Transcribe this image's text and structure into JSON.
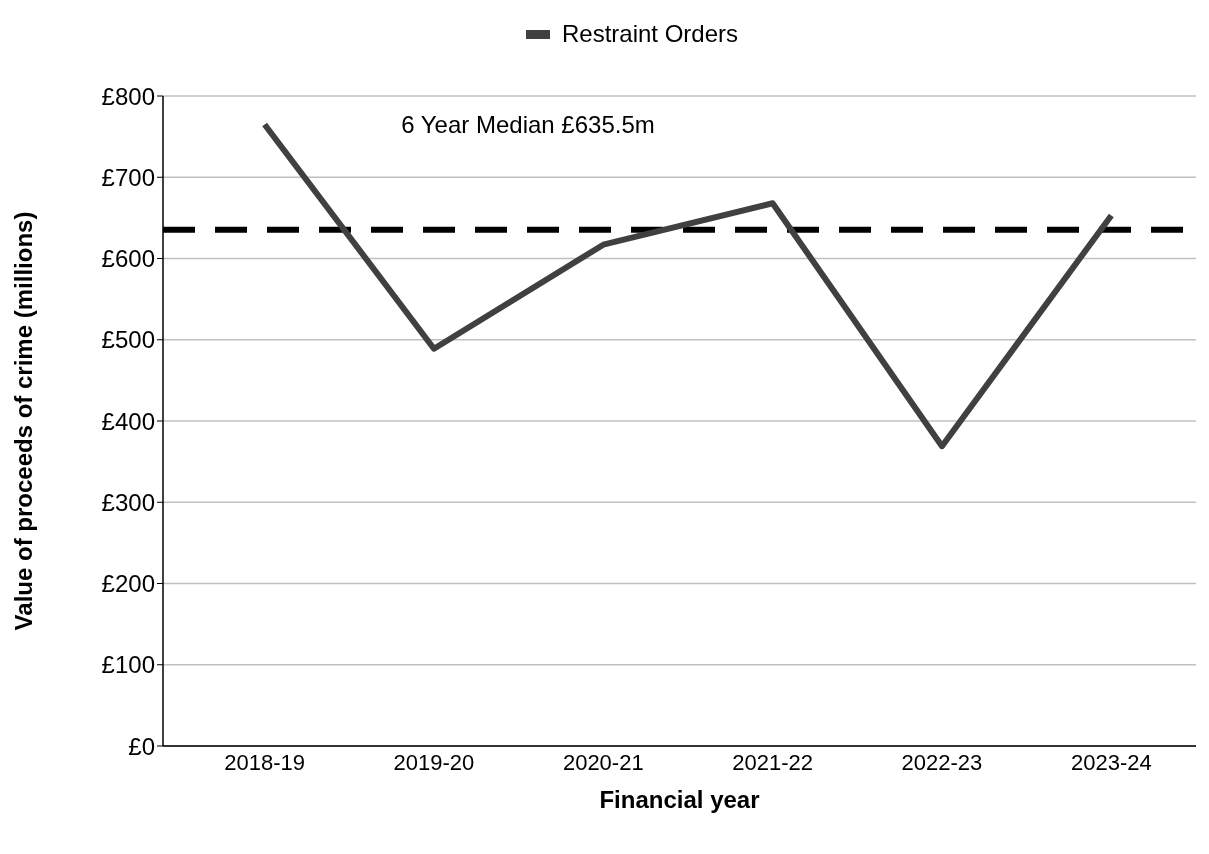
{
  "chart_data": {
    "type": "line",
    "xlabel": "Financial year",
    "ylabel": "Value of proceeds of crime (millions)",
    "categories": [
      "2018-19",
      "2019-20",
      "2020-21",
      "2021-22",
      "2022-23",
      "2023-24"
    ],
    "series": [
      {
        "name": "Restraint Orders",
        "color": "#404040",
        "values": [
          765,
          489,
          617,
          668,
          369,
          653
        ]
      }
    ],
    "ylim": [
      0,
      800
    ],
    "yticks": [
      {
        "value": 0,
        "label": "£0"
      },
      {
        "value": 100,
        "label": "£100"
      },
      {
        "value": 200,
        "label": "£200"
      },
      {
        "value": 300,
        "label": "£300"
      },
      {
        "value": 400,
        "label": "£400"
      },
      {
        "value": 500,
        "label": "£500"
      },
      {
        "value": 600,
        "label": "£600"
      },
      {
        "value": 700,
        "label": "£700"
      },
      {
        "value": 800,
        "label": "£800"
      }
    ],
    "ref_lines": [
      {
        "axis": "y",
        "value": 635.5,
        "label": "6 Year Median £635.5m",
        "color": "#000000",
        "line_style": "dashed"
      }
    ],
    "grid": "y",
    "legend": "top",
    "marker": "none",
    "line_style": "solid"
  }
}
